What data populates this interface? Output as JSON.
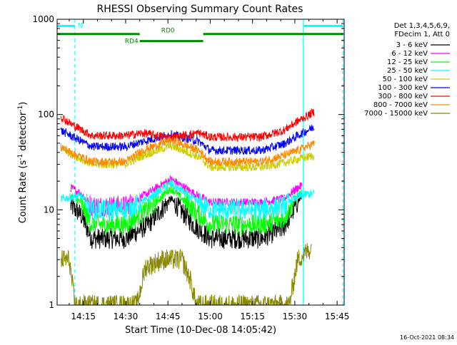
{
  "chart_data": {
    "type": "line",
    "title": "RHESSI Observing Summary Count Rates",
    "xlabel": "Start Time (10-Dec-08 14:05:42)",
    "ylabel_main": "Count Rate (s",
    "ylabel_sup1": "-1",
    "ylabel_mid": " detector",
    "ylabel_sup2": "-1",
    "ylabel_end": ")",
    "y_scale": "log",
    "ylim": [
      1,
      1000
    ],
    "xlim_minutes": [
      5.7,
      107.5
    ],
    "x_ticks": [
      {
        "minute": 15,
        "label": "14:15"
      },
      {
        "minute": 30,
        "label": "14:30"
      },
      {
        "minute": 45,
        "label": "14:45"
      },
      {
        "minute": 60,
        "label": "15:00"
      },
      {
        "minute": 75,
        "label": "15:15"
      },
      {
        "minute": 90,
        "label": "15:30"
      },
      {
        "minute": 105,
        "label": "15:45"
      }
    ],
    "y_ticks": [
      {
        "value": 1,
        "label": "1"
      },
      {
        "value": 10,
        "label": "10"
      },
      {
        "value": 100,
        "label": "100"
      },
      {
        "value": 1000,
        "label": "1000"
      }
    ],
    "legend_header": [
      "Det 1,3,4,5,6,9,",
      "FDecim 1, Att 0"
    ],
    "legend_placement": "right",
    "series": [
      {
        "name": "3 - 6 keV",
        "color": "#000000",
        "knots": [
          [
            10.5,
            11
          ],
          [
            14,
            9
          ],
          [
            18,
            5
          ],
          [
            30,
            5
          ],
          [
            38,
            7
          ],
          [
            46,
            13
          ],
          [
            54,
            7
          ],
          [
            60,
            5
          ],
          [
            78,
            5
          ],
          [
            86,
            6.5
          ],
          [
            91,
            12
          ],
          [
            92.5,
            14
          ]
        ]
      },
      {
        "name": "6 - 12 keV",
        "color": "#ff00ff",
        "knots": [
          [
            10.5,
            17
          ],
          [
            14,
            15
          ],
          [
            18,
            11
          ],
          [
            30,
            11
          ],
          [
            38,
            15
          ],
          [
            46,
            21
          ],
          [
            54,
            15
          ],
          [
            60,
            12
          ],
          [
            78,
            12
          ],
          [
            86,
            13
          ],
          [
            91,
            17
          ],
          [
            92.5,
            18
          ]
        ]
      },
      {
        "name": "12 - 25 keV",
        "color": "#00ff00",
        "knots": [
          [
            10.5,
            14
          ],
          [
            14,
            12
          ],
          [
            18,
            7
          ],
          [
            30,
            7
          ],
          [
            38,
            10
          ],
          [
            46,
            17
          ],
          [
            54,
            10
          ],
          [
            60,
            7
          ],
          [
            78,
            7
          ],
          [
            86,
            8
          ],
          [
            91,
            14
          ],
          [
            92.5,
            15
          ]
        ]
      },
      {
        "name": "25 - 50 keV",
        "color": "#00ffff",
        "knots": [
          [
            7,
            13
          ],
          [
            14,
            14
          ],
          [
            18,
            10
          ],
          [
            30,
            10
          ],
          [
            38,
            13
          ],
          [
            46,
            19
          ],
          [
            54,
            13
          ],
          [
            60,
            10
          ],
          [
            78,
            10
          ],
          [
            86,
            11
          ],
          [
            91,
            14
          ],
          [
            97,
            15
          ]
        ]
      },
      {
        "name": "50 - 100 keV",
        "color": "#cccc00",
        "knots": [
          [
            7,
            45
          ],
          [
            10.5,
            39
          ],
          [
            18,
            30
          ],
          [
            30,
            30
          ],
          [
            36,
            37
          ],
          [
            46,
            47
          ],
          [
            56,
            36
          ],
          [
            60,
            28
          ],
          [
            78,
            28
          ],
          [
            86,
            31
          ],
          [
            91,
            34
          ],
          [
            97,
            37
          ]
        ]
      },
      {
        "name": "100 - 300 keV",
        "color": "#0000ff",
        "knots": [
          [
            7,
            68
          ],
          [
            10.5,
            60
          ],
          [
            18,
            46
          ],
          [
            30,
            46
          ],
          [
            36,
            52
          ],
          [
            46,
            62
          ],
          [
            56,
            52
          ],
          [
            60,
            42
          ],
          [
            78,
            42
          ],
          [
            86,
            49
          ],
          [
            91,
            60
          ],
          [
            97,
            75
          ]
        ]
      },
      {
        "name": "300 - 800 keV",
        "color": "#ff0000",
        "knots": [
          [
            7,
            95
          ],
          [
            10.5,
            80
          ],
          [
            18,
            60
          ],
          [
            30,
            60
          ],
          [
            36,
            64
          ],
          [
            46,
            57
          ],
          [
            56,
            64
          ],
          [
            60,
            58
          ],
          [
            78,
            58
          ],
          [
            86,
            68
          ],
          [
            91,
            85
          ],
          [
            97,
            107
          ]
        ]
      },
      {
        "name": "800 - 7000 keV",
        "color": "#ff8800",
        "knots": [
          [
            7,
            46
          ],
          [
            10.5,
            40
          ],
          [
            18,
            32
          ],
          [
            30,
            32
          ],
          [
            36,
            42
          ],
          [
            46,
            54
          ],
          [
            56,
            42
          ],
          [
            60,
            32
          ],
          [
            78,
            32
          ],
          [
            86,
            37
          ],
          [
            91,
            42
          ],
          [
            97,
            50
          ]
        ]
      },
      {
        "name": "7000 - 15000 keV",
        "color": "#888800",
        "knots": [
          [
            7,
            3
          ],
          [
            10,
            3
          ],
          [
            12,
            1
          ],
          [
            34,
            1
          ],
          [
            37,
            2.5
          ],
          [
            43,
            3
          ],
          [
            50,
            3
          ],
          [
            53,
            1.8
          ],
          [
            55,
            1
          ],
          [
            88,
            1
          ],
          [
            91,
            3
          ],
          [
            96,
            4
          ]
        ]
      }
    ],
    "bars": [
      {
        "label": "N",
        "color": "#00ffff",
        "y_value": 850,
        "segments": [
          [
            5.7,
            12
          ],
          [
            93,
            107
          ]
        ]
      },
      {
        "label": "RD4",
        "color": "#008800",
        "y_value": 700,
        "segments": [
          [
            5.7,
            35
          ]
        ]
      },
      {
        "label": "RD0",
        "color": "#008800",
        "y_value": 700,
        "segments": [
          [
            57.5,
            107
          ]
        ]
      },
      {
        "label": "",
        "color": "#008800",
        "y_value": 590,
        "segments": [
          [
            35,
            57.5
          ]
        ]
      }
    ],
    "vlines": [
      {
        "minute": 5.7,
        "style": "solid",
        "color": "#00ffff"
      },
      {
        "minute": 12,
        "style": "dashed",
        "color": "#00ffff"
      },
      {
        "minute": 93,
        "style": "solid",
        "color": "#00ffff"
      },
      {
        "minute": 107,
        "style": "dashed",
        "color": "#00ffff"
      }
    ],
    "date_stamp": "16-Oct-2021 08:34"
  }
}
